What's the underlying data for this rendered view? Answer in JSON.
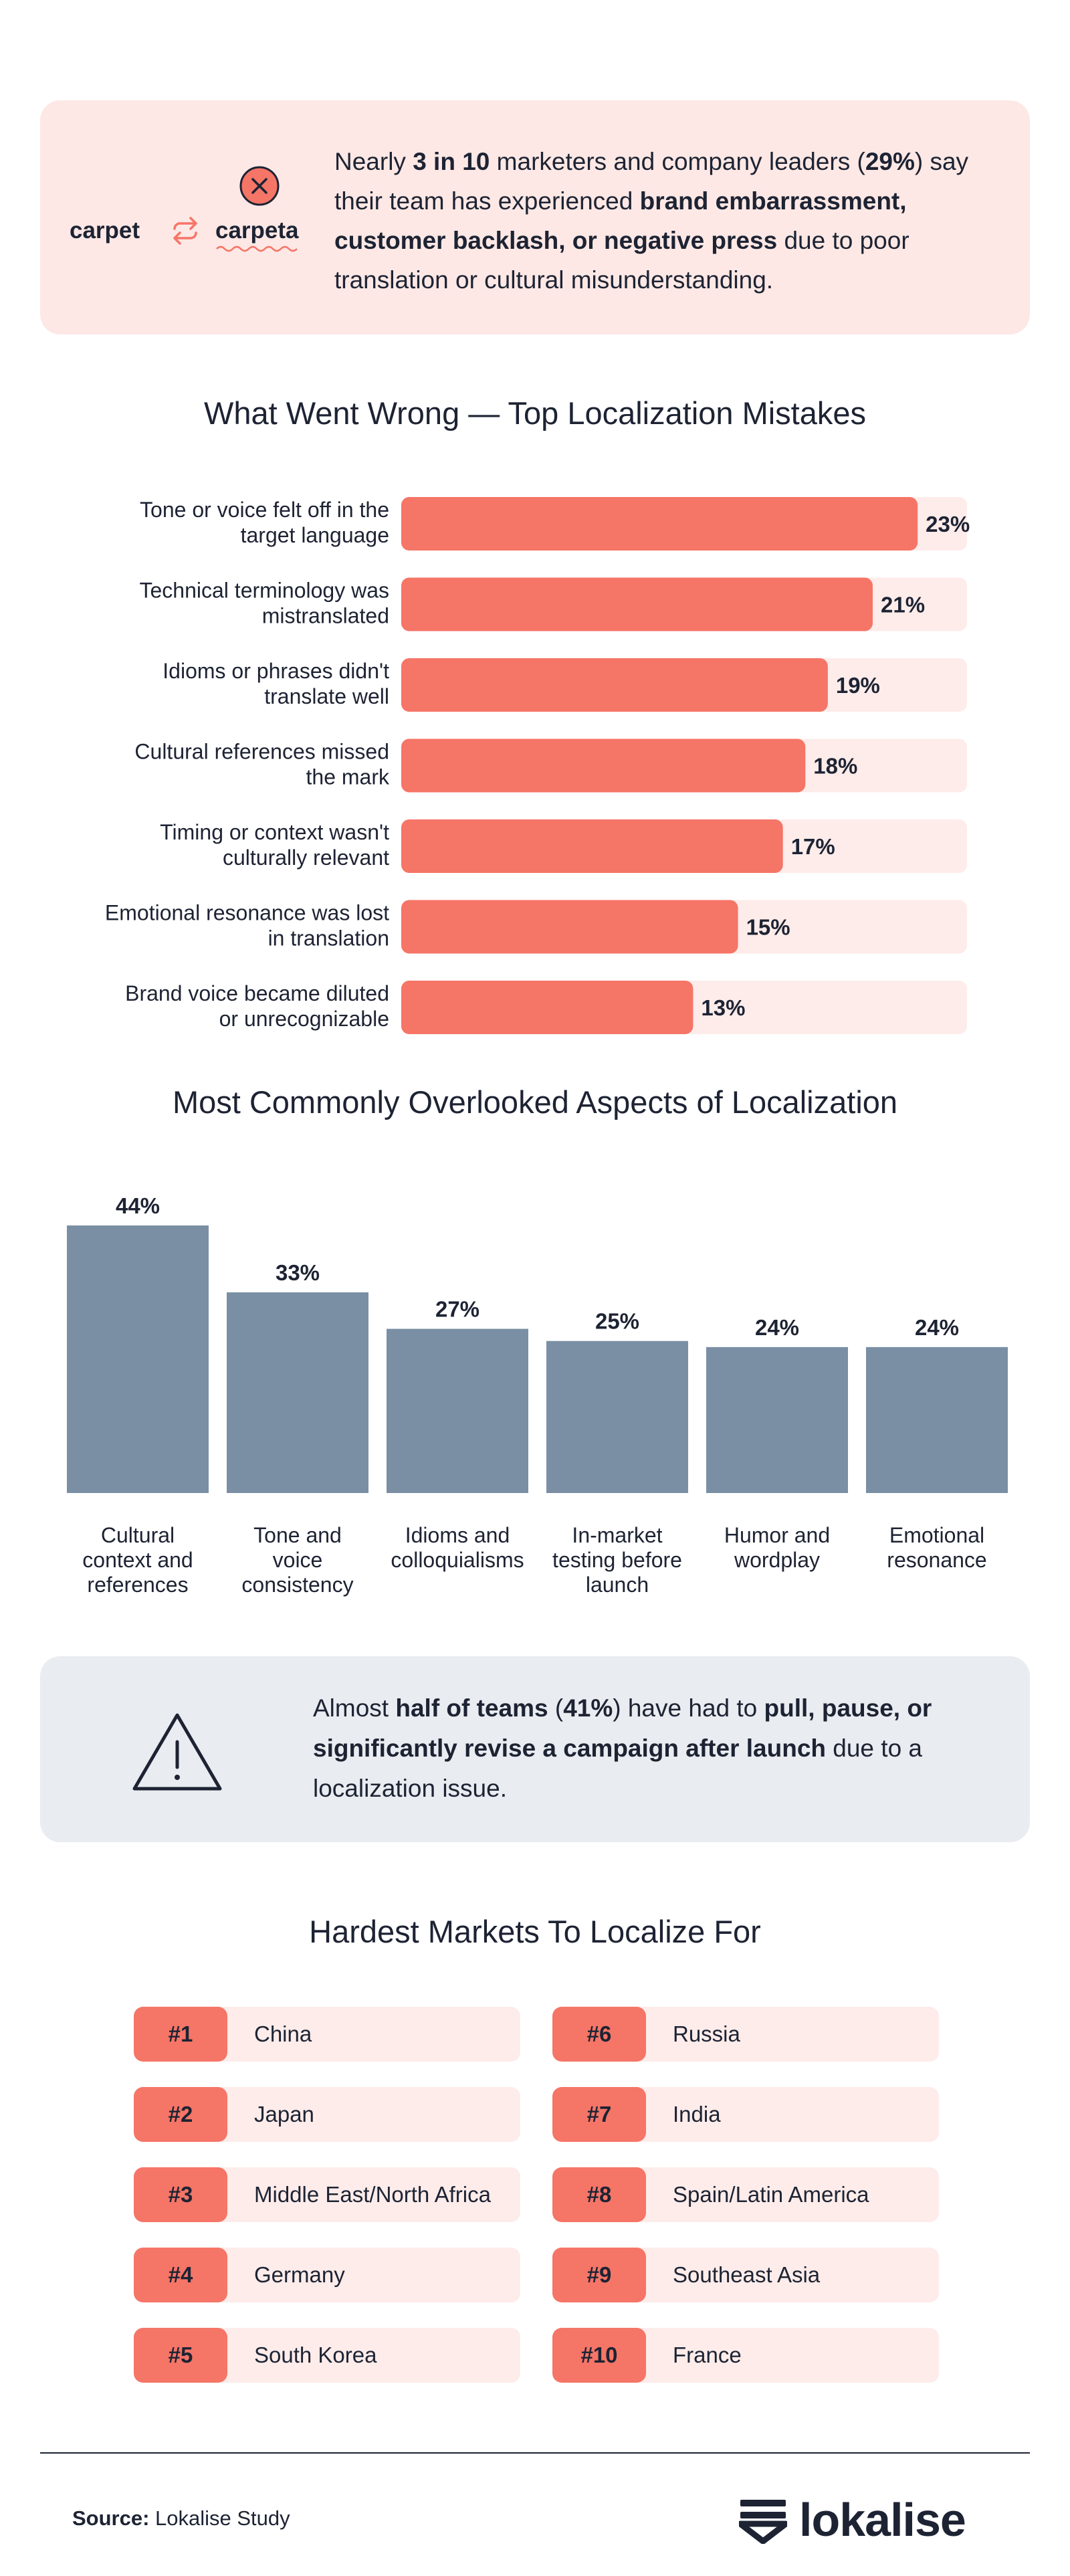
{
  "callout": {
    "original_word": "carpet",
    "translated_word": "carpeta",
    "t1": "Nearly ",
    "b1": "3 in 10",
    "t2": " marketers and company leaders (",
    "b2": "29%",
    "t3": ") say their team has experienced ",
    "b3": "brand embarrassment, customer backlash, or negative press",
    "t4": " due to poor translation or cultural misunderstanding."
  },
  "colors": {
    "accent": "#f57567",
    "accent_light": "#fdecea",
    "slate": "#7a8fa3",
    "text": "#1d2333"
  },
  "chart_data": [
    {
      "type": "bar",
      "orientation": "horizontal",
      "title": "What Went Wrong — Top Localization Mistakes",
      "categories": [
        "Tone or voice felt off in the target language",
        "Technical terminology was mistranslated",
        "Idioms or phrases didn't translate well",
        "Cultural references missed the mark",
        "Timing or context wasn't culturally relevant",
        "Emotional resonance was lost in translation",
        "Brand voice became diluted or unrecognizable"
      ],
      "category_lines": [
        [
          "Tone or voice felt off in the",
          "target language"
        ],
        [
          "Technical terminology was",
          "mistranslated"
        ],
        [
          "Idioms or phrases didn't",
          "translate well"
        ],
        [
          "Cultural references missed",
          "the mark"
        ],
        [
          "Timing or context wasn't",
          "culturally relevant"
        ],
        [
          "Emotional resonance was lost",
          "in translation"
        ],
        [
          "Brand voice became diluted",
          "or unrecognizable"
        ]
      ],
      "values": [
        23,
        21,
        19,
        18,
        17,
        15,
        13
      ],
      "labels": [
        "23%",
        "21%",
        "19%",
        "18%",
        "17%",
        "15%",
        "13%"
      ],
      "unit": "%",
      "xlim": [
        0,
        25.2
      ],
      "xlabel": "",
      "ylabel": ""
    },
    {
      "type": "bar",
      "orientation": "vertical",
      "title": "Most Commonly Overlooked Aspects of Localization",
      "categories": [
        "Cultural context and references",
        "Tone and voice consistency",
        "Idioms and colloquialisms",
        "In-market testing before launch",
        "Humor and wordplay",
        "Emotional resonance"
      ],
      "category_lines": [
        [
          "Cultural",
          "context and",
          "references"
        ],
        [
          "Tone and",
          "voice",
          "consistency"
        ],
        [
          "Idioms and",
          "colloquialisms"
        ],
        [
          "In-market",
          "testing before",
          "launch"
        ],
        [
          "Humor and",
          "wordplay"
        ],
        [
          "Emotional",
          "resonance"
        ]
      ],
      "values": [
        44,
        33,
        27,
        25,
        24,
        24
      ],
      "labels": [
        "44%",
        "33%",
        "27%",
        "25%",
        "24%",
        "24%"
      ],
      "unit": "%",
      "ylim": [
        0,
        44
      ],
      "xlabel": "",
      "ylabel": ""
    }
  ],
  "warning": {
    "t1": "Almost ",
    "b1": "half of teams",
    "t2": " (",
    "b2": "41%",
    "t3": ") have had to ",
    "b3": "pull, pause, or significantly revise a campaign after launch",
    "t4": " due to a localization issue."
  },
  "markets": {
    "title": "Hardest Markets To Localize For",
    "left": [
      {
        "rank": "#1",
        "name": "China"
      },
      {
        "rank": "#2",
        "name": "Japan"
      },
      {
        "rank": "#3",
        "name": "Middle East/North Africa"
      },
      {
        "rank": "#4",
        "name": "Germany"
      },
      {
        "rank": "#5",
        "name": "South Korea"
      }
    ],
    "right": [
      {
        "rank": "#6",
        "name": "Russia"
      },
      {
        "rank": "#7",
        "name": "India"
      },
      {
        "rank": "#8",
        "name": "Spain/Latin America"
      },
      {
        "rank": "#9",
        "name": "Southeast Asia"
      },
      {
        "rank": "#10",
        "name": "France"
      }
    ]
  },
  "footer": {
    "source_label": "Source:",
    "source_value": " Lokalise Study",
    "logo_text": "lokalise",
    "logo_icon": "lokalise-logo-icon"
  }
}
